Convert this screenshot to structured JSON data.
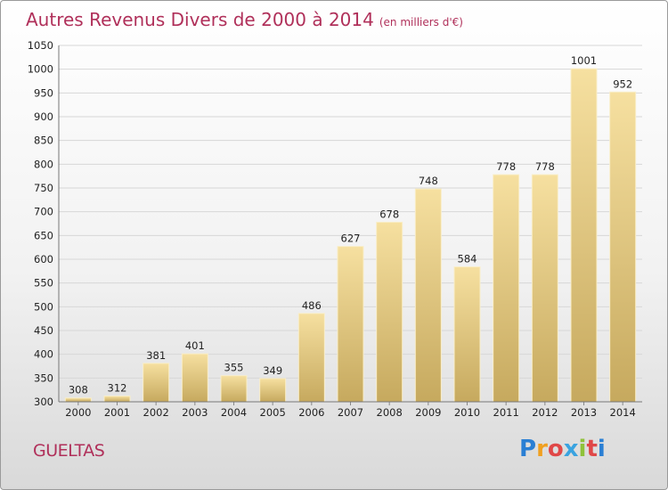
{
  "header": {
    "title": "Autres Revenus Divers de 2000 à 2014",
    "subtitle": "(en milliers d'€)"
  },
  "footer": {
    "commune": "GUELTAS",
    "logo": "Proxiti",
    "logo_colors": [
      "#2a7fd4",
      "#f0a020",
      "#e04848",
      "#3aa3e0",
      "#8fc23a",
      "#e04848",
      "#2a7fd4"
    ]
  },
  "colors": {
    "title": "#b0305a",
    "bar_light": "#f6e0a0",
    "bar_dark": "#c6a95e"
  },
  "chart_data": {
    "type": "bar",
    "title": "Autres Revenus Divers de 2000 à 2014",
    "subtitle": "(en milliers d'€)",
    "categories": [
      "2000",
      "2001",
      "2002",
      "2003",
      "2004",
      "2005",
      "2006",
      "2007",
      "2008",
      "2009",
      "2010",
      "2011",
      "2012",
      "2013",
      "2014"
    ],
    "values": [
      308,
      312,
      381,
      401,
      355,
      349,
      486,
      627,
      678,
      748,
      584,
      778,
      778,
      1001,
      952
    ],
    "ylim": [
      300,
      1050
    ],
    "yticks": [
      300,
      350,
      400,
      450,
      500,
      550,
      600,
      650,
      700,
      750,
      800,
      850,
      900,
      950,
      1000,
      1050
    ],
    "grid": true,
    "legend": "none"
  }
}
